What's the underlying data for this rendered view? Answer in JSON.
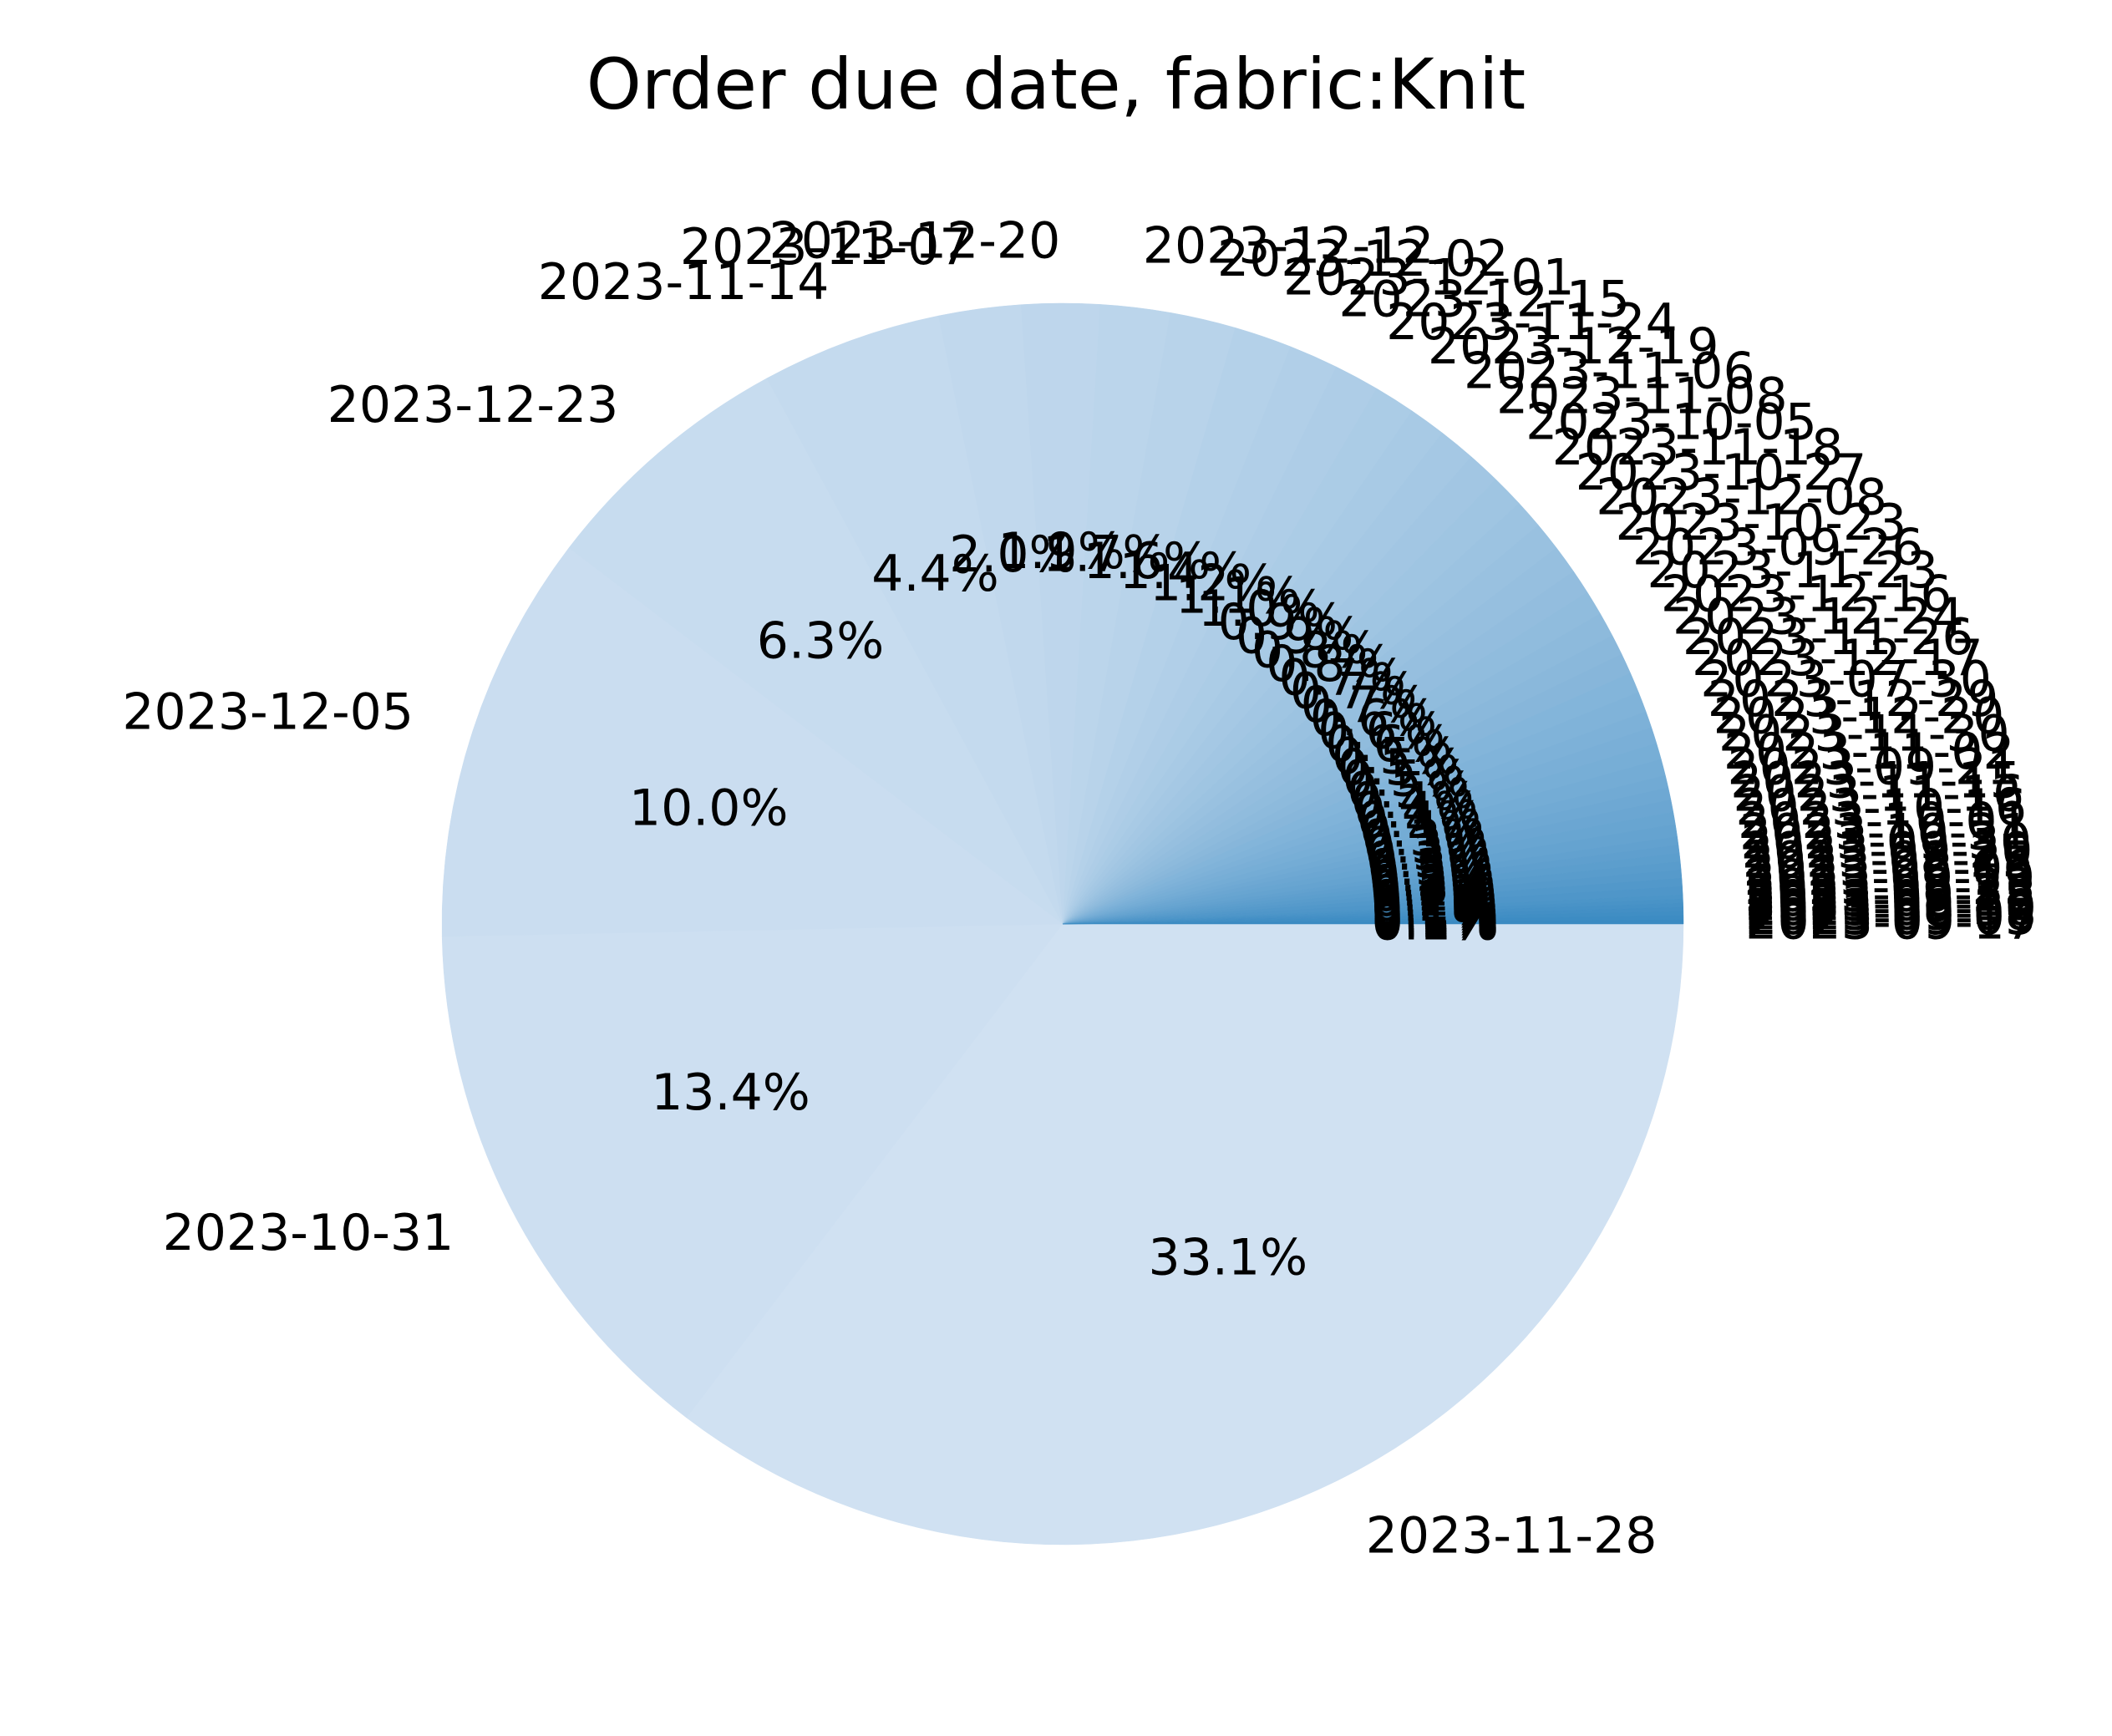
{
  "chart_data": {
    "type": "pie",
    "title": "Order due date, fabric:Knit",
    "start_angle_deg": 0,
    "direction": "clockwise",
    "color_start": "#d0e1f2",
    "color_end": "#3a8ac2",
    "slices": [
      {
        "label": "2023-11-28",
        "pct_label": "33.1%",
        "value": 33.1
      },
      {
        "label": "2023-10-31",
        "pct_label": "13.4%",
        "value": 13.4
      },
      {
        "label": "2023-12-05",
        "pct_label": "10.0%",
        "value": 10.0
      },
      {
        "label": "2023-12-23",
        "pct_label": "6.3%",
        "value": 6.3
      },
      {
        "label": "2023-11-14",
        "pct_label": "4.4%",
        "value": 4.4
      },
      {
        "label": "2023-11-07",
        "pct_label": "2.0%",
        "value": 2.0
      },
      {
        "label": "2023-12-20",
        "pct_label": "1.9%",
        "value": 1.9
      },
      {
        "label": "2023-12-12",
        "pct_label": "1.7%",
        "value": 1.7
      },
      {
        "label": "2023-12-02",
        "pct_label": "1.6%",
        "value": 1.6
      },
      {
        "label": "2023-12-01",
        "pct_label": "1.4%",
        "value": 1.4
      },
      {
        "label": "2023-12-15",
        "pct_label": "1.2%",
        "value": 1.2
      },
      {
        "label": "2023-11-24",
        "pct_label": "1.1%",
        "value": 1.1
      },
      {
        "label": "2023-12-19",
        "pct_label": "1.0%",
        "value": 1.0
      },
      {
        "label": "2023-11-06",
        "pct_label": "0.9%",
        "value": 0.9
      },
      {
        "label": "2023-11-08",
        "pct_label": "0.9%",
        "value": 0.9
      },
      {
        "label": "2023-10-05",
        "pct_label": "0.8%",
        "value": 0.8
      },
      {
        "label": "2023-11-18",
        "pct_label": "0.8%",
        "value": 0.8
      },
      {
        "label": "2023-10-27",
        "pct_label": "0.7%",
        "value": 0.7
      },
      {
        "label": "2023-12-08",
        "pct_label": "0.7%",
        "value": 0.7
      },
      {
        "label": "2023-10-23",
        "pct_label": "0.7%",
        "value": 0.7
      },
      {
        "label": "2023-09-26",
        "pct_label": "0.6%",
        "value": 0.6
      },
      {
        "label": "2023-11-23",
        "pct_label": "0.6%",
        "value": 0.6
      },
      {
        "label": "2023-12-16",
        "pct_label": "0.6%",
        "value": 0.6
      },
      {
        "label": "2023-12-24",
        "pct_label": "0.5%",
        "value": 0.5
      },
      {
        "label": "2023-11-26",
        "pct_label": "0.5%",
        "value": 0.5
      },
      {
        "label": "2023-12-17",
        "pct_label": "0.5%",
        "value": 0.5
      },
      {
        "label": "2023-07-30",
        "pct_label": "0.5%",
        "value": 0.5
      },
      {
        "label": "2023-12-29",
        "pct_label": "0.4%",
        "value": 0.4
      },
      {
        "label": "2023-12-20",
        "pct_label": "0.4%",
        "value": 0.4
      },
      {
        "label": "2023-11-30",
        "pct_label": "0.4%",
        "value": 0.4
      },
      {
        "label": "2023-11-02",
        "pct_label": "0.4%",
        "value": 0.4
      },
      {
        "label": "2023-09-21",
        "pct_label": "0.3%",
        "value": 0.3
      },
      {
        "label": "2023-11-15",
        "pct_label": "0.3%",
        "value": 0.3
      },
      {
        "label": "2023-11-16",
        "pct_label": "0.3%",
        "value": 0.3
      },
      {
        "label": "2023-10-16",
        "pct_label": "0.3%",
        "value": 0.3
      },
      {
        "label": "2023-10-01",
        "pct_label": "0.3%",
        "value": 0.3
      },
      {
        "label": "2023-10-31",
        "pct_label": "0.2%",
        "value": 0.2
      },
      {
        "label": "2023-09-30",
        "pct_label": "0.2%",
        "value": 0.2
      },
      {
        "label": "2023-09-20",
        "pct_label": "0.2%",
        "value": 0.2
      },
      {
        "label": "2023-08-25",
        "pct_label": "0.2%",
        "value": 0.2
      },
      {
        "label": "2023-08-06",
        "pct_label": "0.2%",
        "value": 0.2
      },
      {
        "label": "2023-09-19",
        "pct_label": "0.2%",
        "value": 0.2
      },
      {
        "label": "2023-08-23",
        "pct_label": "0.2%",
        "value": 0.2
      },
      {
        "label": "2023-09-28",
        "pct_label": "0.1%",
        "value": 0.1
      },
      {
        "label": "2023-08-15",
        "pct_label": "0.1%",
        "value": 0.1
      },
      {
        "label": "2023-09-12",
        "pct_label": "0.1%",
        "value": 0.1
      },
      {
        "label": "2023-08-30",
        "pct_label": "0.1%",
        "value": 0.1
      },
      {
        "label": "2023-09-08",
        "pct_label": "0.1%",
        "value": 0.1
      },
      {
        "label": "2023-09-05",
        "pct_label": "0.1%",
        "value": 0.1
      },
      {
        "label": "2023-09-17",
        "pct_label": "0.1%",
        "value": 0.1
      }
    ]
  }
}
